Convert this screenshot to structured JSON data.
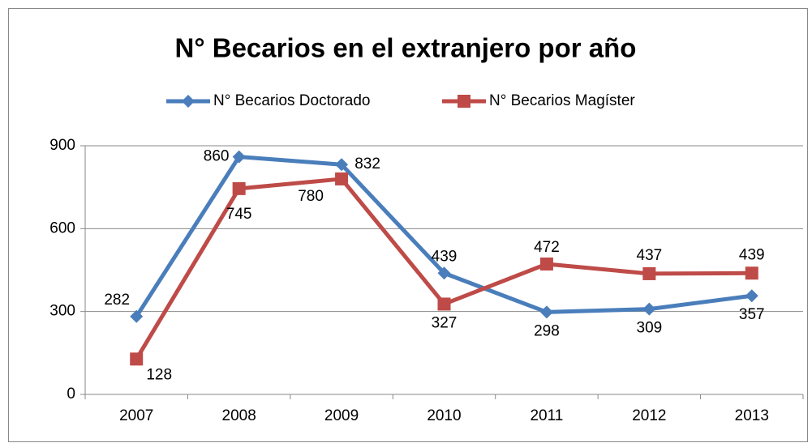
{
  "chart_data": {
    "type": "line",
    "title": "N° Becarios en el extranjero por año",
    "categories": [
      "2007",
      "2008",
      "2009",
      "2010",
      "2011",
      "2012",
      "2013"
    ],
    "series": [
      {
        "name": "N° Becarios Doctorado",
        "color": "#4a7ebb",
        "marker": "diamond",
        "values": [
          282,
          860,
          832,
          439,
          298,
          309,
          357
        ]
      },
      {
        "name": "N° Becarios Magíster",
        "color": "#be4b48",
        "marker": "square",
        "values": [
          128,
          745,
          780,
          327,
          472,
          437,
          439
        ]
      }
    ],
    "ylim": [
      0,
      900
    ],
    "yticks": [
      0,
      300,
      600,
      900
    ],
    "grid": true,
    "legend": "top"
  }
}
